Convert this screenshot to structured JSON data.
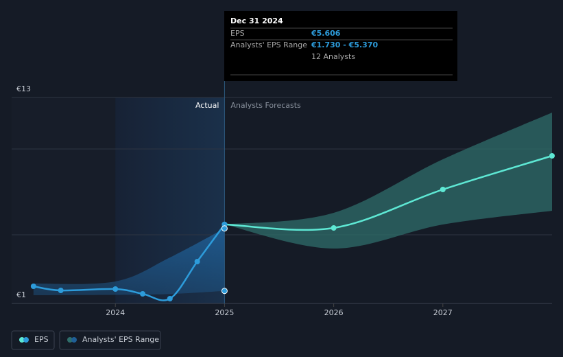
{
  "chart_data": {
    "type": "line",
    "xlim": [
      2023.05,
      2028.0
    ],
    "xticks": [
      2024,
      2025,
      2026,
      2027
    ],
    "ylim": [
      1,
      13
    ],
    "yticks": [
      {
        "value": 13,
        "label": "€13"
      },
      {
        "value": 1,
        "label": "€1"
      }
    ],
    "ygrid": [
      5,
      10
    ],
    "series": [
      {
        "name": "EPS",
        "color": "#2d9cdb",
        "x": [
          2023.25,
          2023.5,
          2024.0,
          2024.25,
          2024.5,
          2024.75,
          2025.0
        ],
        "values": [
          2.0,
          1.76,
          1.84,
          1.56,
          1.28,
          3.44,
          5.606
        ]
      },
      {
        "name": "Analysts' EPS Range",
        "color": "#2f6e6b",
        "x": [
          2025.0,
          2026.0,
          2027.0,
          2028.0
        ],
        "low": [
          5.606,
          4.2,
          5.6,
          6.4
        ],
        "high": [
          5.606,
          6.28,
          9.4,
          12.12
        ]
      }
    ],
    "forecast": {
      "color": "#5ee8d4",
      "x": [
        2025.0,
        2026.0,
        2027.0,
        2028.0
      ],
      "values": [
        5.606,
        5.4,
        7.64,
        9.6
      ]
    },
    "actual_range": {
      "color": "#1f5f96",
      "x": [
        2023.25,
        2024.0,
        2024.5,
        2025.0
      ],
      "low": [
        1.48,
        1.5,
        1.55,
        1.73
      ],
      "high": [
        2.16,
        2.28,
        3.68,
        5.37
      ]
    },
    "annotations": {
      "actual": "Actual",
      "forecast": "Analysts Forecasts"
    },
    "tooltip": {
      "date": "Dec 31 2024",
      "rows": [
        {
          "label": "EPS",
          "value": "€5.606"
        },
        {
          "label": "Analysts' EPS Range",
          "value": "€1.730 - €5.370"
        }
      ],
      "note": "12 Analysts"
    }
  }
}
